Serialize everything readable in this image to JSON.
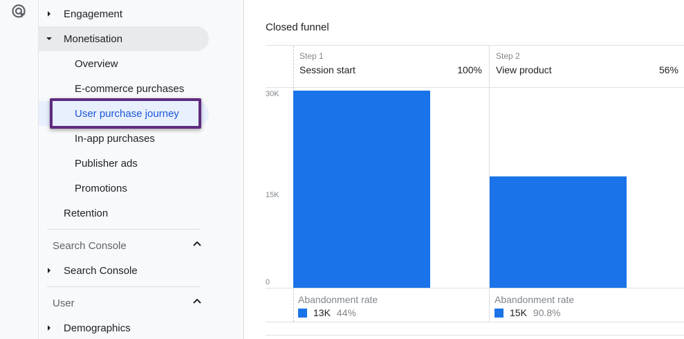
{
  "sidebar": {
    "engagement": "Engagement",
    "monetisation": "Monetisation",
    "overview": "Overview",
    "ecommerce": "E-commerce purchases",
    "user_purchase_journey": "User purchase journey",
    "inapp": "In-app purchases",
    "publisher_ads": "Publisher ads",
    "promotions": "Promotions",
    "retention": "Retention",
    "search_console_header": "Search Console",
    "search_console_item": "Search Console",
    "user_header": "User",
    "demographics": "Demographics"
  },
  "main": {
    "title": "Closed funnel"
  },
  "chart_data": {
    "type": "bar",
    "title": "Closed funnel",
    "categories": [
      "Session start",
      "View product"
    ],
    "values": [
      30000,
      17000
    ],
    "ylim": [
      0,
      30000
    ],
    "yticks": [
      "30K",
      "15K",
      "0"
    ],
    "steps": [
      {
        "step": "Step 1",
        "name": "Session start",
        "pct": "100%",
        "abandon_label": "Abandonment rate",
        "abandon_count": "13K",
        "abandon_rate": "44%"
      },
      {
        "step": "Step 2",
        "name": "View product",
        "pct": "56%",
        "abandon_label": "Abandonment rate",
        "abandon_count": "15K",
        "abandon_rate": "90.8%"
      }
    ],
    "colors": {
      "bar": "#1a73e8"
    }
  }
}
